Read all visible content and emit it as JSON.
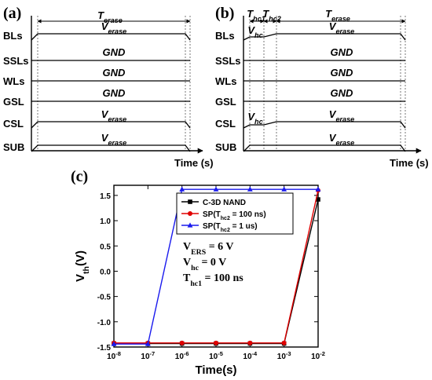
{
  "panel_a": {
    "label": "(a)",
    "time_label": "T",
    "time_sub": "erase",
    "signals": [
      "BLs",
      "SSLs",
      "WLs",
      "GSL",
      "CSL",
      "SUB"
    ],
    "wave_labels": [
      {
        "main": "V",
        "sub": "erase"
      },
      {
        "main": "GND",
        "sub": ""
      },
      {
        "main": "GND",
        "sub": ""
      },
      {
        "main": "GND",
        "sub": ""
      },
      {
        "main": "V",
        "sub": "erase"
      },
      {
        "main": "V",
        "sub": "erase"
      }
    ],
    "xlabel": "Time (s)"
  },
  "panel_b": {
    "label": "(b)",
    "t_hc1": "T",
    "t_hc1_sub": "hc1",
    "t_hc2": "T",
    "t_hc2_sub": "hc2",
    "t_erase": "T",
    "t_erase_sub": "erase",
    "signals": [
      "BLs",
      "SSLs",
      "WLs",
      "GSL",
      "CSL",
      "SUB"
    ],
    "wave_labels": [
      {
        "main": "V",
        "sub": "erase"
      },
      {
        "main": "GND",
        "sub": ""
      },
      {
        "main": "GND",
        "sub": ""
      },
      {
        "main": "GND",
        "sub": ""
      },
      {
        "main": "V",
        "sub": "erase"
      },
      {
        "main": "V",
        "sub": "erase"
      }
    ],
    "vhc_label": "V",
    "vhc_sub": "hc",
    "xlabel": "Time (s)"
  },
  "panel_c": {
    "label": "(c)",
    "annotations": [
      {
        "main": "V",
        "sub": "ERS",
        "rest": " = 6 V"
      },
      {
        "main": "V",
        "sub": "hc",
        "rest": " = 0 V"
      },
      {
        "main": "T",
        "sub": "hc1",
        "rest": " = 100 ns"
      }
    ]
  },
  "chart_data": {
    "type": "line",
    "title": "",
    "xlabel": "Time(s)",
    "ylabel": "V",
    "ylabel_sub": "th",
    "ylabel_unit": "(V)",
    "x_scale": "log",
    "xlim": [
      1e-08,
      0.01
    ],
    "ylim": [
      -1.5,
      1.7
    ],
    "x_ticks": [
      1e-08,
      1e-07,
      1e-06,
      1e-05,
      0.0001,
      0.001,
      0.01
    ],
    "x_tick_labels": [
      {
        "base": "10",
        "exp": "-8"
      },
      {
        "base": "10",
        "exp": "-7"
      },
      {
        "base": "10",
        "exp": "-6"
      },
      {
        "base": "10",
        "exp": "-5"
      },
      {
        "base": "10",
        "exp": "-4"
      },
      {
        "base": "10",
        "exp": "-3"
      },
      {
        "base": "10",
        "exp": "-2"
      }
    ],
    "y_ticks": [
      -1.5,
      -1.0,
      -0.5,
      0.0,
      0.5,
      1.0,
      1.5
    ],
    "y_tick_labels": [
      "-1.5",
      "-1.0",
      "-0.5",
      "0.0",
      "0.5",
      "1.0",
      "1.5"
    ],
    "legend_position": "top-right",
    "series": [
      {
        "name": "C-3D NAND",
        "color": "#000000",
        "marker": "square",
        "x": [
          1e-08,
          1e-07,
          1e-06,
          1e-05,
          0.0001,
          0.001,
          0.01
        ],
        "y": [
          -1.43,
          -1.43,
          -1.43,
          -1.43,
          -1.43,
          -1.43,
          1.42
        ]
      },
      {
        "name": "SP(T",
        "name_sub": "hc2",
        "name_rest": " = 100 ns)",
        "color": "#e00000",
        "marker": "circle",
        "x": [
          1e-08,
          1e-07,
          1e-06,
          1e-05,
          0.0001,
          0.001,
          0.01
        ],
        "y": [
          -1.42,
          -1.42,
          -1.42,
          -1.42,
          -1.42,
          -1.42,
          1.6
        ]
      },
      {
        "name": "SP(T",
        "name_sub": "hc2",
        "name_rest": " = 1 us)",
        "color": "#1a1aee",
        "marker": "triangle",
        "x": [
          1e-08,
          1e-07,
          1e-06,
          1e-05,
          0.0001,
          0.001,
          0.01
        ],
        "y": [
          -1.44,
          -1.44,
          1.62,
          1.62,
          1.62,
          1.62,
          1.62
        ]
      }
    ]
  }
}
